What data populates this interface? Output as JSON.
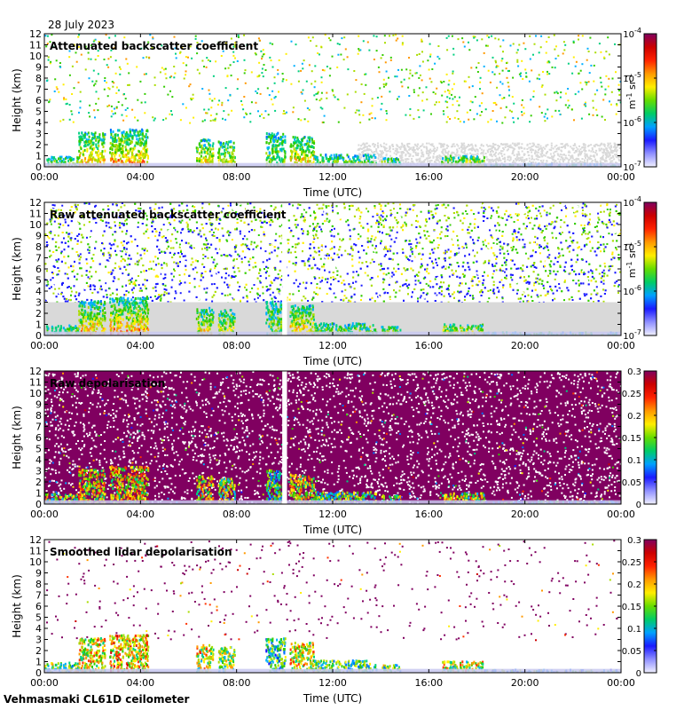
{
  "date_label": "28 July 2023",
  "footer_label": "Vehmasmaki CL61D ceilometer",
  "chart_data": [
    {
      "type": "heatmap",
      "title": "Attenuated backscatter coefficient",
      "xlabel": "Time (UTC)",
      "ylabel": "Height (km)",
      "x_ticks": [
        "00:00",
        "04:00",
        "08:00",
        "12:00",
        "16:00",
        "20:00",
        "00:00"
      ],
      "xlim_hours": [
        0,
        24
      ],
      "ylim": [
        0,
        12
      ],
      "y_ticks": [
        "0",
        "1",
        "2",
        "3",
        "4",
        "5",
        "6",
        "7",
        "8",
        "9",
        "10",
        "11",
        "12"
      ],
      "colorbar": {
        "scale": "log",
        "range": [
          1e-07,
          0.0001
        ],
        "tick_labels": [
          "10-7",
          "10-6",
          "10-5",
          "10-4"
        ],
        "tick_exponents": [
          "-7",
          "-6",
          "-5",
          "-4"
        ],
        "unit_label": "m-1 sr-1"
      },
      "mode": "sparse_noise",
      "has_gap": false
    },
    {
      "type": "heatmap",
      "title": "Raw attenuated backscatter coefficient",
      "xlabel": "Time (UTC)",
      "ylabel": "Height (km)",
      "x_ticks": [
        "00:00",
        "04:00",
        "08:00",
        "12:00",
        "16:00",
        "20:00",
        "00:00"
      ],
      "xlim_hours": [
        0,
        24
      ],
      "ylim": [
        0,
        12
      ],
      "y_ticks": [
        "0",
        "1",
        "2",
        "3",
        "4",
        "5",
        "6",
        "7",
        "8",
        "9",
        "10",
        "11",
        "12"
      ],
      "colorbar": {
        "scale": "log",
        "range": [
          1e-07,
          0.0001
        ],
        "tick_labels": [
          "10-7",
          "10-6",
          "10-5",
          "10-4"
        ],
        "tick_exponents": [
          "-7",
          "-6",
          "-5",
          "-4"
        ],
        "unit_label": "m-1 sr-1"
      },
      "mode": "dense_noise_blue",
      "has_gap": true,
      "gap_hours": [
        9.9,
        10.1
      ]
    },
    {
      "type": "heatmap",
      "title": "Raw depolarisation",
      "xlabel": "Time (UTC)",
      "ylabel": "Height (km)",
      "x_ticks": [
        "00:00",
        "04:00",
        "08:00",
        "12:00",
        "16:00",
        "20:00",
        "00:00"
      ],
      "xlim_hours": [
        0,
        24
      ],
      "ylim": [
        0,
        12
      ],
      "y_ticks": [
        "0",
        "1",
        "2",
        "3",
        "4",
        "5",
        "6",
        "7",
        "8",
        "9",
        "10",
        "11",
        "12"
      ],
      "colorbar": {
        "scale": "linear",
        "range": [
          0,
          0.3
        ],
        "tick_labels": [
          "0",
          "0.05",
          "0.1",
          "0.15",
          "0.2",
          "0.25",
          "0.3"
        ]
      },
      "mode": "dense_noise_purple",
      "has_gap": true,
      "gap_hours": [
        9.9,
        10.1
      ]
    },
    {
      "type": "heatmap",
      "title": "Smoothed lidar depolarisation",
      "xlabel": "Time (UTC)",
      "ylabel": "Height (km)",
      "x_ticks": [
        "00:00",
        "04:00",
        "08:00",
        "12:00",
        "16:00",
        "20:00",
        "00:00"
      ],
      "xlim_hours": [
        0,
        24
      ],
      "ylim": [
        0,
        12
      ],
      "y_ticks": [
        "0",
        "1",
        "2",
        "3",
        "4",
        "5",
        "6",
        "7",
        "8",
        "9",
        "10",
        "11",
        "12"
      ],
      "colorbar": {
        "scale": "linear",
        "range": [
          0,
          0.3
        ],
        "tick_labels": [
          "0",
          "0.05",
          "0.1",
          "0.15",
          "0.2",
          "0.25",
          "0.3"
        ]
      },
      "mode": "sparse_purple",
      "has_gap": false
    }
  ],
  "colors": {
    "low_value": "#e6e6f5",
    "blue": "#1a1aff",
    "green": "#00cc00",
    "yellow": "#ffff00",
    "orange": "#ff8000",
    "red": "#cc0000",
    "purple": "#800060",
    "background_gray": "#d9d9d9"
  }
}
